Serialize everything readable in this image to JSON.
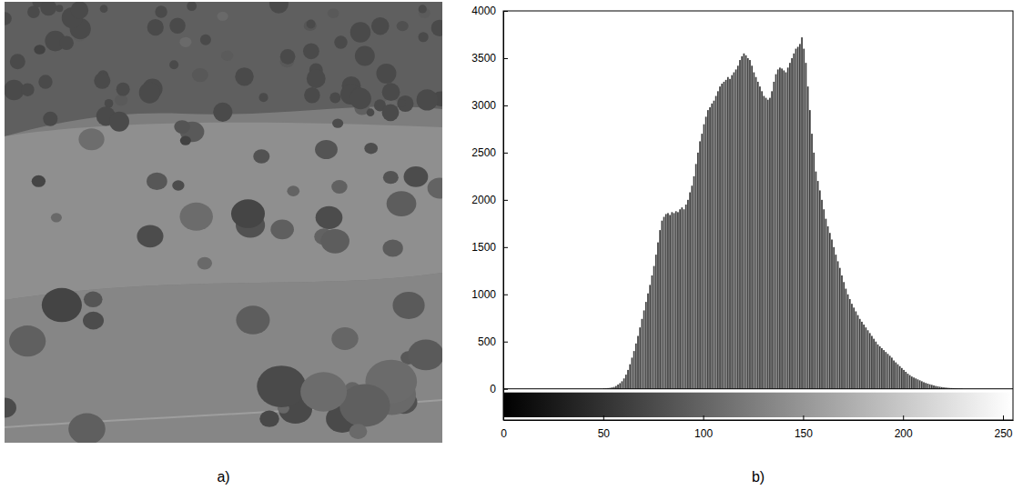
{
  "chart_data": {
    "type": "histogram",
    "bins": [
      50,
      51,
      52,
      53,
      54,
      55,
      56,
      57,
      58,
      59,
      60,
      61,
      62,
      63,
      64,
      65,
      66,
      67,
      68,
      69,
      70,
      71,
      72,
      73,
      74,
      75,
      76,
      77,
      78,
      79,
      80,
      81,
      82,
      83,
      84,
      85,
      86,
      87,
      88,
      89,
      90,
      91,
      92,
      93,
      94,
      95,
      96,
      97,
      98,
      99,
      100,
      101,
      102,
      103,
      104,
      105,
      106,
      107,
      108,
      109,
      110,
      111,
      112,
      113,
      114,
      115,
      116,
      117,
      118,
      119,
      120,
      121,
      122,
      123,
      124,
      125,
      126,
      127,
      128,
      129,
      130,
      131,
      132,
      133,
      134,
      135,
      136,
      137,
      138,
      139,
      140,
      141,
      142,
      143,
      144,
      145,
      146,
      147,
      148,
      149,
      150,
      151,
      152,
      153,
      154,
      155,
      156,
      157,
      158,
      159,
      160,
      161,
      162,
      163,
      164,
      165,
      166,
      167,
      168,
      169,
      170,
      171,
      172,
      173,
      174,
      175,
      176,
      177,
      178,
      179,
      180,
      181,
      182,
      183,
      184,
      185,
      186,
      187,
      188,
      189,
      190,
      191,
      192,
      193,
      194,
      195,
      196,
      197,
      198,
      199,
      200,
      201,
      202,
      203,
      204,
      205,
      206,
      207,
      208,
      209,
      210,
      211,
      212,
      213,
      214,
      215,
      216,
      217,
      218,
      219,
      220,
      221,
      222,
      223,
      224,
      225,
      226,
      227,
      228,
      229,
      230
    ],
    "values": [
      5,
      5,
      8,
      10,
      15,
      20,
      30,
      45,
      60,
      80,
      110,
      150,
      200,
      260,
      330,
      400,
      480,
      560,
      650,
      740,
      830,
      920,
      1010,
      1100,
      1200,
      1300,
      1420,
      1550,
      1680,
      1780,
      1820,
      1850,
      1860,
      1840,
      1870,
      1860,
      1880,
      1870,
      1900,
      1920,
      1900,
      1950,
      2000,
      2080,
      2150,
      2250,
      2380,
      2500,
      2620,
      2700,
      2800,
      2880,
      2950,
      2980,
      3020,
      3050,
      3100,
      3150,
      3200,
      3230,
      3250,
      3270,
      3300,
      3280,
      3320,
      3350,
      3380,
      3420,
      3480,
      3520,
      3550,
      3530,
      3500,
      3480,
      3420,
      3350,
      3300,
      3250,
      3200,
      3150,
      3100,
      3080,
      3060,
      3080,
      3150,
      3250,
      3330,
      3380,
      3400,
      3390,
      3370,
      3350,
      3400,
      3450,
      3500,
      3550,
      3600,
      3620,
      3650,
      3720,
      3600,
      3450,
      3200,
      2950,
      2700,
      2500,
      2300,
      2200,
      2100,
      2000,
      1900,
      1800,
      1720,
      1650,
      1580,
      1500,
      1420,
      1350,
      1280,
      1200,
      1130,
      1060,
      1000,
      950,
      900,
      860,
      820,
      780,
      740,
      710,
      680,
      650,
      620,
      590,
      560,
      530,
      500,
      470,
      450,
      430,
      410,
      390,
      370,
      350,
      330,
      300,
      280,
      260,
      240,
      220,
      200,
      180,
      160,
      145,
      130,
      120,
      110,
      100,
      90,
      80,
      70,
      62,
      55,
      48,
      42,
      36,
      30,
      26,
      22,
      18,
      15,
      13,
      11,
      9,
      8,
      7,
      6,
      5,
      4,
      3
    ],
    "color": "#3c3c3c",
    "xlim": [
      0,
      255
    ],
    "xticks": [
      0,
      50,
      100,
      150,
      200,
      250
    ],
    "ylim": [
      -330,
      4000
    ],
    "yticks": [
      0,
      500,
      1000,
      1500,
      2000,
      2500,
      3000,
      3500,
      4000
    ]
  },
  "panel_labels": [
    "a)",
    "b)"
  ]
}
